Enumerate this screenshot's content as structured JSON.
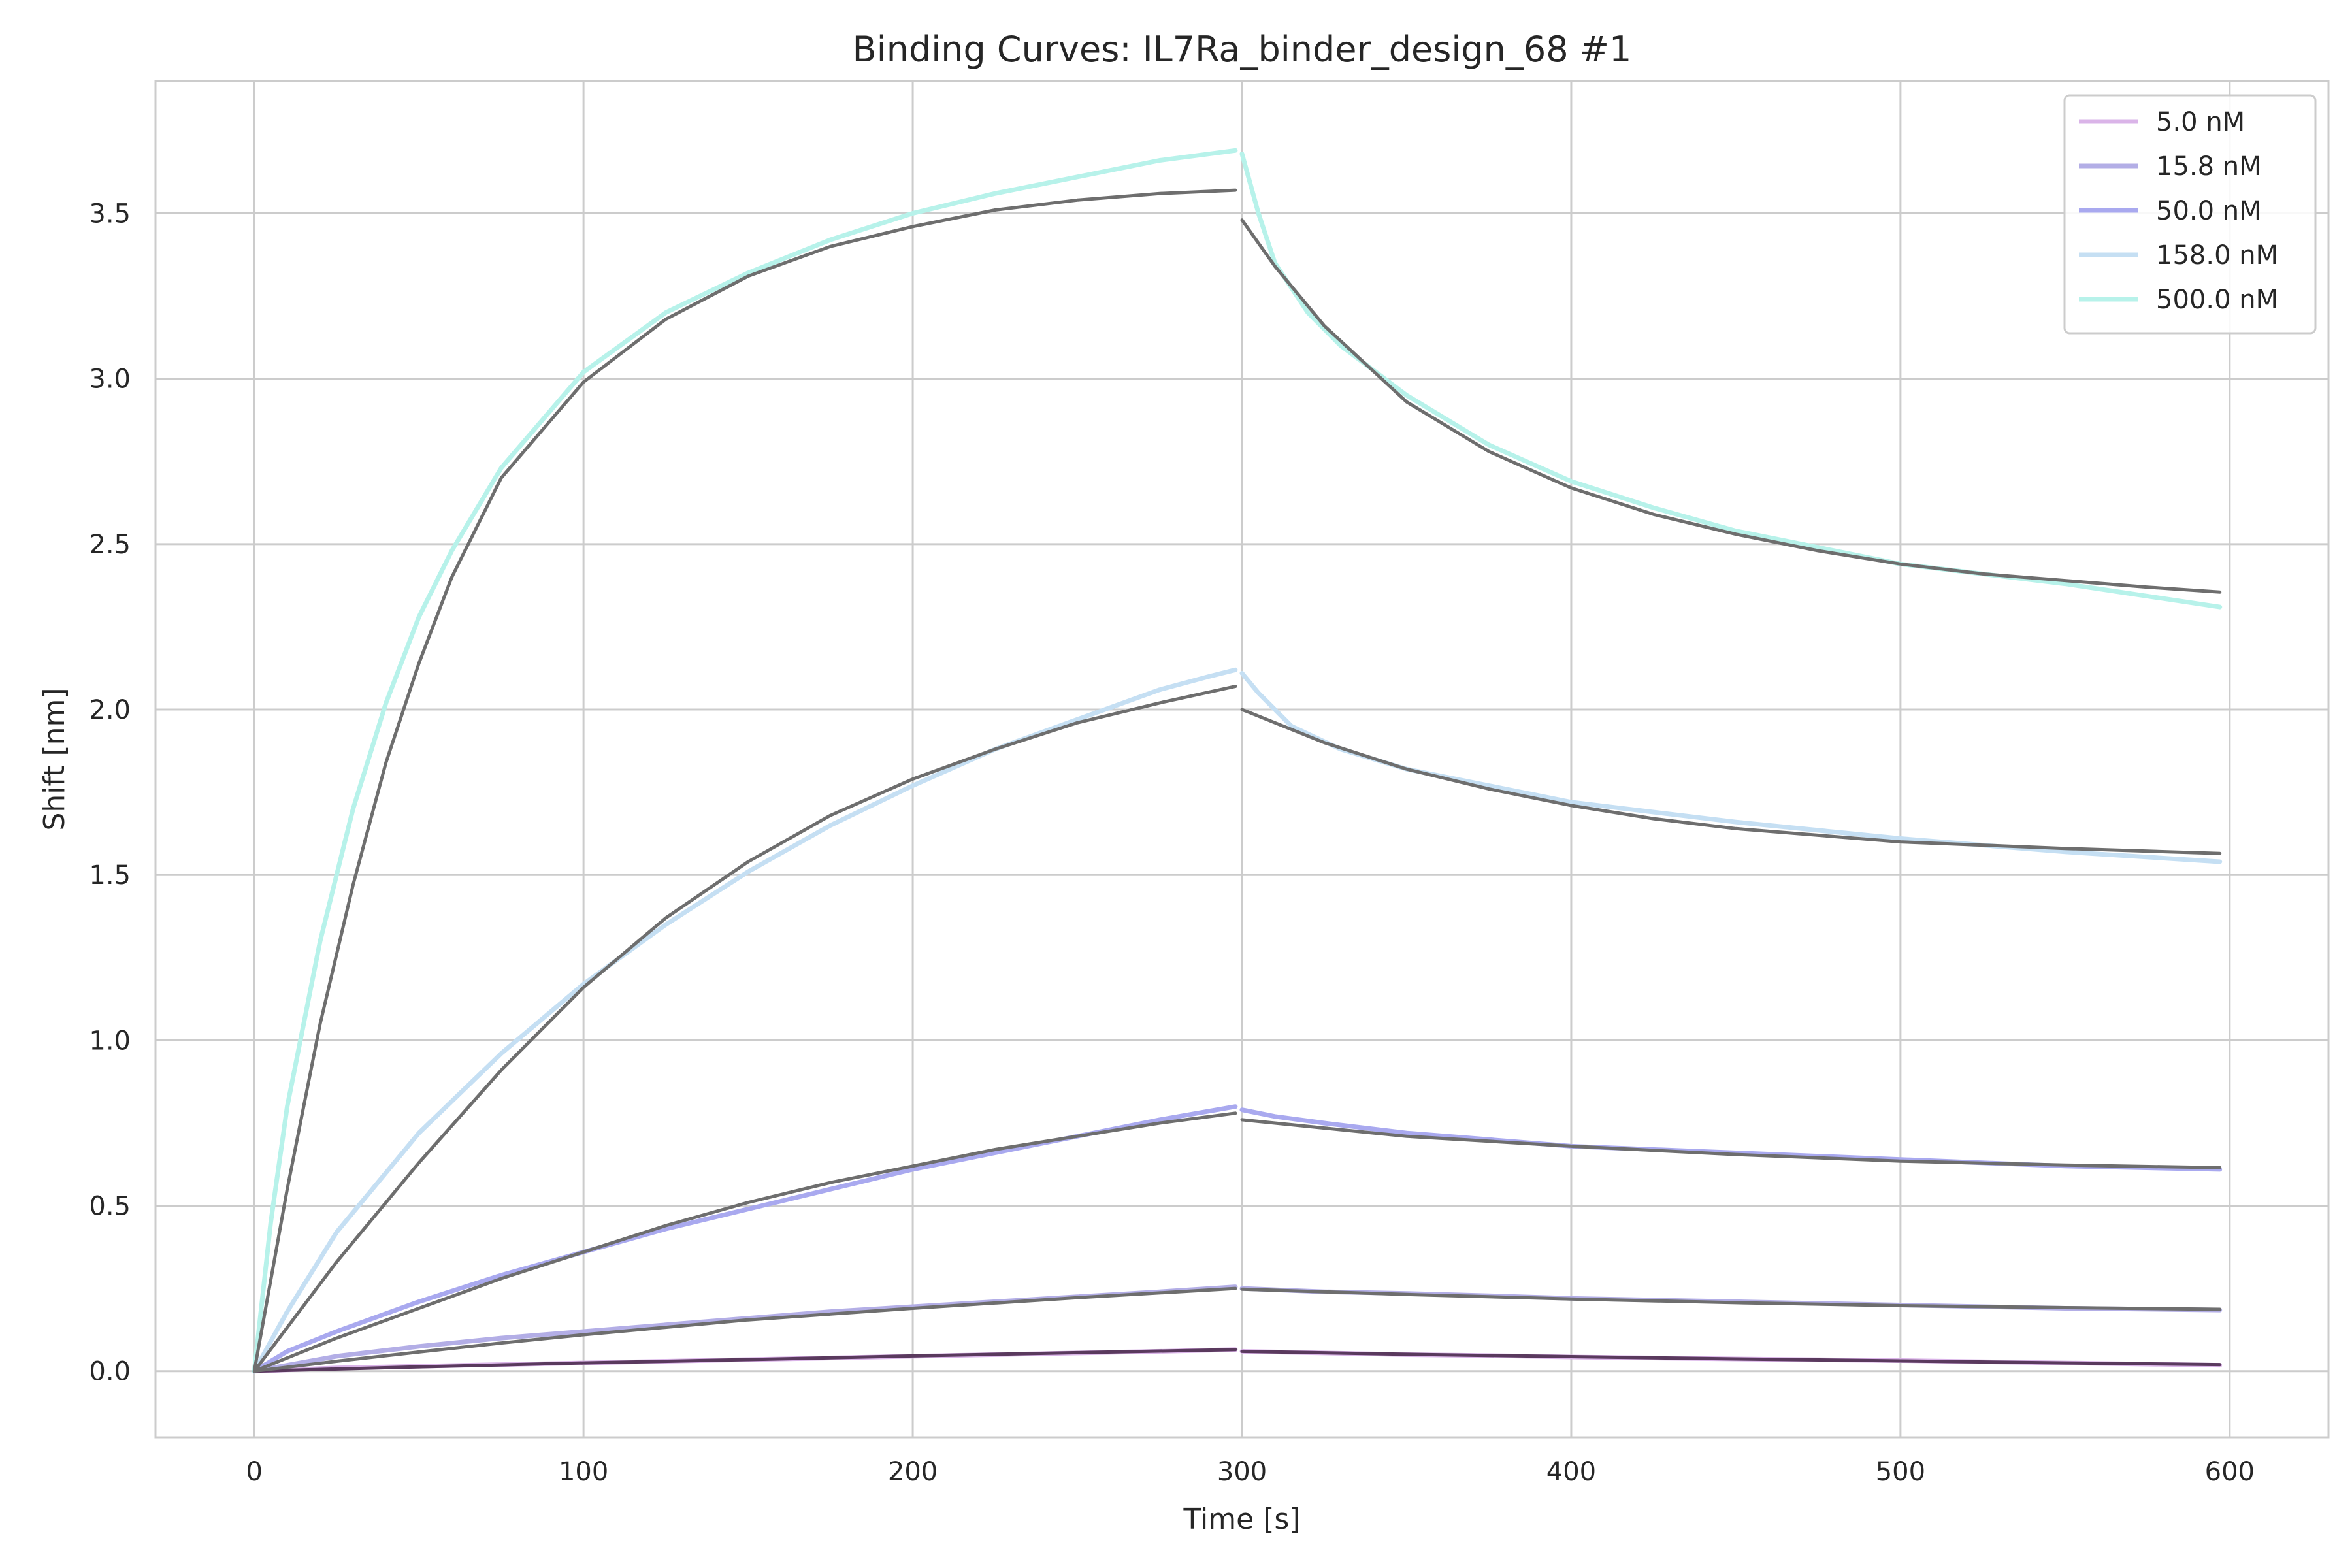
{
  "chart_data": {
    "type": "line",
    "title": "Binding Curves: IL7Ra_binder_design_68 #1",
    "xlabel": "Time [s]",
    "ylabel": "Shift [nm]",
    "xlim": [
      -30,
      630
    ],
    "ylim": [
      -0.2,
      3.9
    ],
    "xticks": [
      0,
      100,
      200,
      300,
      400,
      500,
      600
    ],
    "yticks": [
      0.0,
      0.5,
      1.0,
      1.5,
      2.0,
      2.5,
      3.0,
      3.5
    ],
    "xtick_labels": [
      "0",
      "100",
      "200",
      "300",
      "400",
      "500",
      "600"
    ],
    "ytick_labels": [
      "0.0",
      "0.5",
      "1.0",
      "1.5",
      "2.0",
      "2.5",
      "3.0",
      "3.5"
    ],
    "grid": true,
    "legend_position": "top-right",
    "fit_color": "#6e6e6e",
    "series": [
      {
        "name": "5.0 nM",
        "color": "#dab4e8",
        "measured": {
          "assoc_t": [
            0,
            25,
            50,
            75,
            100,
            125,
            150,
            175,
            200,
            225,
            250,
            275,
            298
          ],
          "assoc_y": [
            0.0,
            0.01,
            0.015,
            0.02,
            0.025,
            0.03,
            0.035,
            0.04,
            0.045,
            0.05,
            0.055,
            0.06,
            0.065
          ],
          "dissoc_t": [
            300,
            325,
            350,
            375,
            400,
            450,
            500,
            550,
            597
          ],
          "dissoc_y": [
            0.06,
            0.055,
            0.05,
            0.047,
            0.043,
            0.037,
            0.032,
            0.025,
            0.018
          ]
        },
        "fit": {
          "assoc_t": [
            0,
            50,
            100,
            150,
            200,
            250,
            298
          ],
          "assoc_y": [
            0.0,
            0.013,
            0.025,
            0.035,
            0.046,
            0.056,
            0.065
          ],
          "dissoc_t": [
            300,
            350,
            400,
            450,
            500,
            550,
            597
          ],
          "dissoc_y": [
            0.06,
            0.051,
            0.044,
            0.037,
            0.031,
            0.025,
            0.02
          ]
        }
      },
      {
        "name": "15.8 nM",
        "color": "#b3aee6",
        "measured": {
          "assoc_t": [
            0,
            25,
            50,
            75,
            100,
            125,
            150,
            175,
            200,
            225,
            250,
            275,
            298
          ],
          "assoc_y": [
            0.0,
            0.045,
            0.075,
            0.1,
            0.12,
            0.14,
            0.16,
            0.18,
            0.195,
            0.21,
            0.225,
            0.24,
            0.255
          ],
          "dissoc_t": [
            300,
            325,
            350,
            375,
            400,
            450,
            500,
            550,
            597
          ],
          "dissoc_y": [
            0.25,
            0.24,
            0.235,
            0.228,
            0.22,
            0.21,
            0.2,
            0.19,
            0.185
          ]
        },
        "fit": {
          "assoc_t": [
            0,
            25,
            50,
            75,
            100,
            150,
            200,
            250,
            298
          ],
          "assoc_y": [
            0.0,
            0.03,
            0.058,
            0.085,
            0.11,
            0.155,
            0.19,
            0.222,
            0.25
          ],
          "dissoc_t": [
            300,
            350,
            400,
            450,
            500,
            550,
            597
          ],
          "dissoc_y": [
            0.248,
            0.232,
            0.218,
            0.207,
            0.198,
            0.192,
            0.187
          ]
        }
      },
      {
        "name": "50.0 nM",
        "color": "#a9a9ef",
        "measured": {
          "assoc_t": [
            0,
            10,
            25,
            50,
            75,
            100,
            125,
            150,
            175,
            200,
            225,
            250,
            275,
            298
          ],
          "assoc_y": [
            0.0,
            0.06,
            0.12,
            0.21,
            0.29,
            0.36,
            0.43,
            0.49,
            0.55,
            0.61,
            0.66,
            0.71,
            0.76,
            0.8
          ],
          "dissoc_t": [
            300,
            310,
            325,
            350,
            375,
            400,
            450,
            500,
            550,
            597
          ],
          "dissoc_y": [
            0.79,
            0.77,
            0.75,
            0.72,
            0.7,
            0.68,
            0.66,
            0.64,
            0.62,
            0.61
          ]
        },
        "fit": {
          "assoc_t": [
            0,
            25,
            50,
            75,
            100,
            125,
            150,
            175,
            200,
            225,
            250,
            275,
            298
          ],
          "assoc_y": [
            0.0,
            0.1,
            0.19,
            0.28,
            0.36,
            0.44,
            0.51,
            0.57,
            0.62,
            0.67,
            0.71,
            0.75,
            0.78
          ],
          "dissoc_t": [
            300,
            325,
            350,
            375,
            400,
            450,
            500,
            550,
            597
          ],
          "dissoc_y": [
            0.76,
            0.735,
            0.71,
            0.695,
            0.68,
            0.655,
            0.635,
            0.623,
            0.615
          ]
        }
      },
      {
        "name": "158.0 nM",
        "color": "#c5dff3",
        "measured": {
          "assoc_t": [
            0,
            10,
            25,
            50,
            75,
            100,
            125,
            150,
            175,
            200,
            225,
            250,
            275,
            290,
            298
          ],
          "assoc_y": [
            0.0,
            0.18,
            0.42,
            0.72,
            0.96,
            1.17,
            1.35,
            1.51,
            1.65,
            1.77,
            1.88,
            1.97,
            2.06,
            2.1,
            2.12
          ],
          "dissoc_t": [
            300,
            305,
            315,
            330,
            350,
            375,
            400,
            450,
            500,
            550,
            597
          ],
          "dissoc_y": [
            2.11,
            2.05,
            1.95,
            1.88,
            1.82,
            1.77,
            1.72,
            1.66,
            1.61,
            1.57,
            1.54
          ]
        },
        "fit": {
          "assoc_t": [
            0,
            25,
            50,
            75,
            100,
            125,
            150,
            175,
            200,
            225,
            250,
            275,
            298
          ],
          "assoc_y": [
            0.0,
            0.33,
            0.63,
            0.91,
            1.16,
            1.37,
            1.54,
            1.68,
            1.79,
            1.88,
            1.96,
            2.02,
            2.07
          ],
          "dissoc_t": [
            300,
            325,
            350,
            375,
            400,
            425,
            450,
            500,
            550,
            597
          ],
          "dissoc_y": [
            2.0,
            1.9,
            1.82,
            1.76,
            1.71,
            1.67,
            1.64,
            1.6,
            1.58,
            1.565
          ]
        }
      },
      {
        "name": "500.0 nM",
        "color": "#b7f2ea",
        "measured": {
          "assoc_t": [
            0,
            5,
            10,
            20,
            30,
            40,
            50,
            60,
            75,
            100,
            125,
            150,
            175,
            200,
            225,
            250,
            275,
            298
          ],
          "assoc_y": [
            0.0,
            0.45,
            0.8,
            1.3,
            1.7,
            2.02,
            2.28,
            2.48,
            2.73,
            3.02,
            3.2,
            3.32,
            3.42,
            3.5,
            3.56,
            3.61,
            3.66,
            3.69
          ],
          "dissoc_t": [
            300,
            305,
            310,
            320,
            330,
            350,
            375,
            400,
            425,
            450,
            475,
            500,
            550,
            597
          ],
          "dissoc_y": [
            3.68,
            3.5,
            3.35,
            3.2,
            3.1,
            2.95,
            2.8,
            2.69,
            2.61,
            2.54,
            2.49,
            2.44,
            2.38,
            2.31
          ]
        },
        "fit": {
          "assoc_t": [
            0,
            10,
            20,
            30,
            40,
            50,
            60,
            75,
            100,
            125,
            150,
            175,
            200,
            225,
            250,
            275,
            298
          ],
          "assoc_y": [
            0.0,
            0.55,
            1.05,
            1.47,
            1.84,
            2.14,
            2.4,
            2.7,
            2.99,
            3.18,
            3.31,
            3.4,
            3.46,
            3.51,
            3.54,
            3.56,
            3.57
          ],
          "dissoc_t": [
            300,
            310,
            325,
            350,
            375,
            400,
            425,
            450,
            475,
            500,
            525,
            550,
            575,
            597
          ],
          "dissoc_y": [
            3.48,
            3.34,
            3.16,
            2.93,
            2.78,
            2.67,
            2.59,
            2.53,
            2.48,
            2.44,
            2.41,
            2.39,
            2.37,
            2.355
          ]
        }
      }
    ]
  }
}
